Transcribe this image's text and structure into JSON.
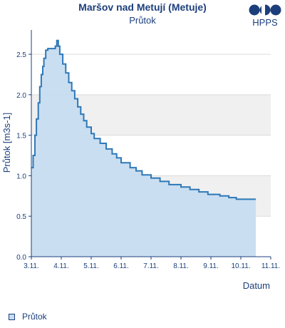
{
  "header": {
    "title": "Maršov nad Metují (Metuje)",
    "subtitle": "Průtok",
    "logo_text": "HPPS"
  },
  "legend": {
    "label": "Průtok"
  },
  "colors": {
    "line": "#2e78b8",
    "fill": "#c6dcf0",
    "band": "#f0f0f0",
    "text": "#1c3f7c",
    "axis": "#1c3f7c"
  },
  "chart_data": {
    "type": "area",
    "title": "Průtok",
    "xlabel": "Datum",
    "ylabel": "Průtok [m3s-1]",
    "xlim": [
      0,
      8
    ],
    "ylim": [
      0,
      2.8
    ],
    "xtick_values": [
      0,
      1,
      2,
      3,
      4,
      5,
      6,
      7,
      8
    ],
    "xtick_labels": [
      "3.11.",
      "4.11.",
      "5.11.",
      "6.11.",
      "7.11.",
      "8.11.",
      "9.11.",
      "10.11.",
      "11.11."
    ],
    "ytick_values": [
      0,
      0.5,
      1.0,
      1.5,
      2.0,
      2.5
    ],
    "ytick_labels": [
      "0.0",
      "0.5",
      "1.0",
      "1.5",
      "2.0",
      "2.5"
    ],
    "alternating_bands": [
      [
        0.5,
        1.0
      ],
      [
        1.5,
        2.0
      ]
    ],
    "legend_position": "bottom-left",
    "series": [
      {
        "name": "Průtok",
        "x": [
          0.0,
          0.06,
          0.12,
          0.17,
          0.23,
          0.28,
          0.33,
          0.38,
          0.42,
          0.48,
          0.55,
          0.65,
          0.8,
          0.85,
          0.87,
          0.9,
          0.95,
          1.05,
          1.15,
          1.25,
          1.35,
          1.45,
          1.55,
          1.65,
          1.75,
          1.85,
          2.0,
          2.1,
          2.3,
          2.5,
          2.7,
          2.85,
          3.0,
          3.3,
          3.5,
          3.7,
          4.0,
          4.3,
          4.6,
          5.0,
          5.3,
          5.6,
          5.9,
          6.3,
          6.6,
          6.85,
          7.3,
          7.5
        ],
        "y": [
          1.1,
          1.25,
          1.5,
          1.7,
          1.9,
          2.1,
          2.25,
          2.35,
          2.45,
          2.55,
          2.57,
          2.57,
          2.6,
          2.67,
          2.67,
          2.6,
          2.5,
          2.38,
          2.27,
          2.15,
          2.05,
          1.95,
          1.85,
          1.76,
          1.68,
          1.6,
          1.52,
          1.46,
          1.4,
          1.33,
          1.27,
          1.22,
          1.16,
          1.1,
          1.06,
          1.01,
          0.97,
          0.93,
          0.89,
          0.86,
          0.83,
          0.8,
          0.77,
          0.75,
          0.73,
          0.71,
          0.71,
          0.71
        ]
      }
    ]
  }
}
